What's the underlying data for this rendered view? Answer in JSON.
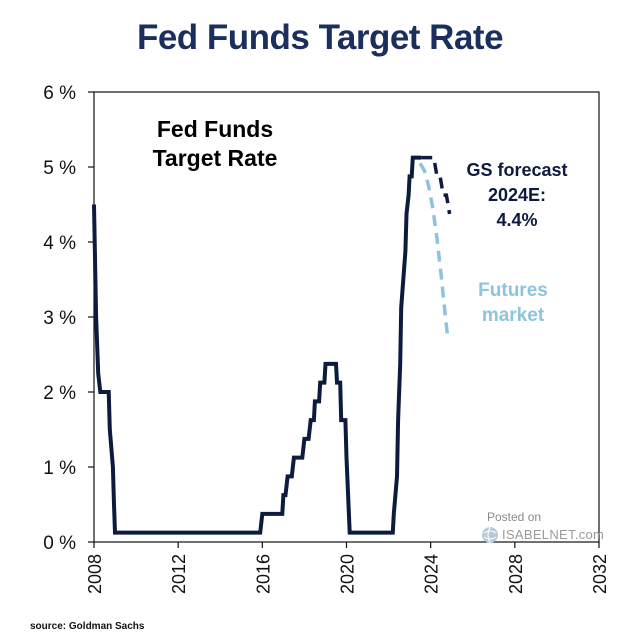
{
  "chart_data": {
    "type": "line",
    "title": "Fed Funds Target Rate",
    "inset_label": [
      "Fed Funds",
      "Target Rate"
    ],
    "xlabel": "",
    "ylabel": "",
    "xlim": [
      2008,
      2032
    ],
    "ylim": [
      0,
      6
    ],
    "x_ticks": [
      2008,
      2012,
      2016,
      2020,
      2024,
      2028,
      2032
    ],
    "y_ticks": [
      0,
      1,
      2,
      3,
      4,
      5,
      6
    ],
    "y_tick_labels": [
      "0 %",
      "1 %",
      "2 %",
      "3 %",
      "4 %",
      "5 %",
      "6 %"
    ],
    "series": [
      {
        "name": "Fed Funds Target Rate",
        "style": "solid",
        "color": "#0d1b3e",
        "x": [
          2008.0,
          2008.1,
          2008.2,
          2008.3,
          2008.7,
          2008.75,
          2008.9,
          2008.95,
          2009.0,
          2015.9,
          2016.0,
          2016.95,
          2017.0,
          2017.1,
          2017.2,
          2017.4,
          2017.5,
          2017.9,
          2018.0,
          2018.2,
          2018.3,
          2018.45,
          2018.5,
          2018.7,
          2018.75,
          2018.95,
          2019.0,
          2019.5,
          2019.55,
          2019.7,
          2019.75,
          2019.95,
          2020.0,
          2020.15,
          2020.2,
          2022.2,
          2022.25,
          2022.4,
          2022.45,
          2022.55,
          2022.6,
          2022.8,
          2022.85,
          2022.95,
          2023.0,
          2023.1,
          2023.15,
          2023.3,
          2023.35,
          2023.5,
          2023.55
        ],
        "values": [
          4.5,
          3.0,
          2.25,
          2.0,
          2.0,
          1.5,
          1.0,
          0.5,
          0.125,
          0.125,
          0.375,
          0.375,
          0.625,
          0.625,
          0.875,
          0.875,
          1.125,
          1.125,
          1.375,
          1.375,
          1.625,
          1.625,
          1.875,
          1.875,
          2.125,
          2.125,
          2.375,
          2.375,
          2.125,
          2.125,
          1.625,
          1.625,
          1.125,
          0.125,
          0.125,
          0.125,
          0.375,
          0.875,
          1.625,
          2.375,
          3.125,
          3.875,
          4.375,
          4.625,
          4.875,
          4.875,
          5.125,
          5.125,
          5.125,
          5.125,
          5.125
        ]
      },
      {
        "name": "GS forecast 2024E: 4.4%",
        "style": "dashed",
        "color": "#0d1b3e",
        "x": [
          2023.55,
          2024.0,
          2024.15,
          2024.3,
          2024.45,
          2024.6,
          2024.75,
          2024.9
        ],
        "values": [
          5.125,
          5.125,
          5.125,
          4.875,
          4.875,
          4.625,
          4.625,
          4.375
        ]
      },
      {
        "name": "Futures market",
        "style": "dashed",
        "color": "#8ec3df",
        "x": [
          2023.5,
          2023.7,
          2023.9,
          2024.1,
          2024.3,
          2024.5,
          2024.65,
          2024.8
        ],
        "values": [
          5.05,
          4.95,
          4.75,
          4.45,
          4.05,
          3.55,
          3.15,
          2.75
        ]
      }
    ],
    "annotations": {
      "gs_forecast": [
        "GS forecast",
        "2024E:",
        "4.4%"
      ],
      "futures": [
        "Futures",
        "market"
      ]
    }
  },
  "source": "source: Goldman Sachs",
  "watermark": {
    "posted_on": "Posted on",
    "site": "ISABELNET.com"
  },
  "colors": {
    "title": "#1b2f5e",
    "fed_line": "#0d1b3e",
    "futures": "#8ec3df"
  }
}
